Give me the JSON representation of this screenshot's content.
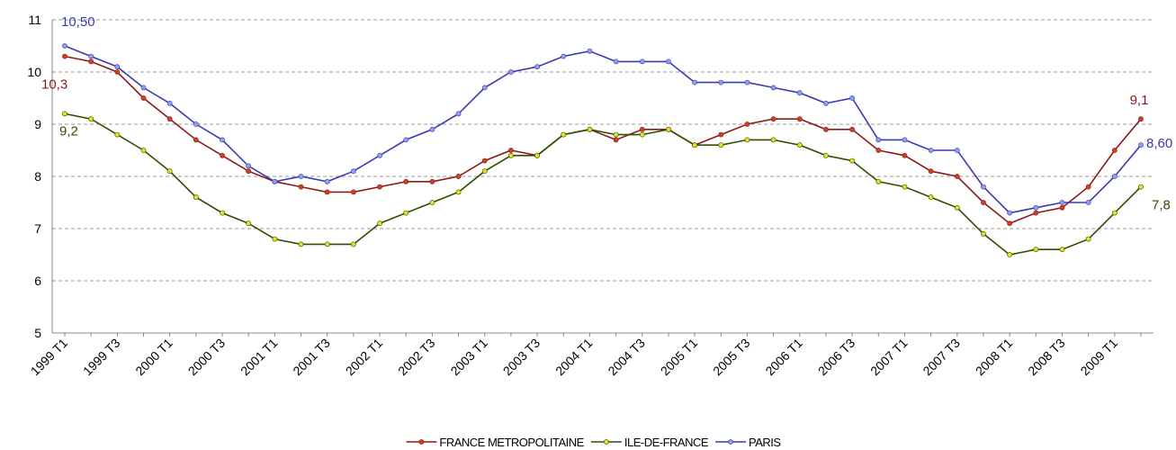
{
  "chart_data": {
    "type": "line",
    "categories": [
      "1999 T1",
      null,
      "1999 T3",
      null,
      "2000 T1",
      null,
      "2000 T3",
      null,
      "2001 T1",
      null,
      "2001 T3",
      null,
      "2002 T1",
      null,
      "2002 T3",
      null,
      "2003 T1",
      null,
      "2003 T3",
      null,
      "2004 T1",
      null,
      "2004 T3",
      null,
      "2005 T1",
      null,
      "2005 T3",
      null,
      "2006 T1",
      null,
      "2006 T3",
      null,
      "2007 T1",
      null,
      "2007 T3",
      null,
      "2008 T1",
      null,
      "2008 T3",
      null,
      "2009 T1",
      null
    ],
    "series": [
      {
        "name": "FRANCE METROPOLITAINE",
        "color": "#8b1a1a",
        "marker_color": "#d04020",
        "values": [
          10.3,
          10.2,
          10.0,
          9.5,
          9.1,
          8.7,
          8.4,
          8.1,
          7.9,
          7.8,
          7.7,
          7.7,
          7.8,
          7.9,
          7.9,
          8.0,
          8.3,
          8.5,
          8.4,
          8.8,
          8.9,
          8.7,
          8.9,
          8.9,
          8.6,
          8.8,
          9.0,
          9.1,
          9.1,
          8.9,
          8.9,
          8.5,
          8.4,
          8.1,
          8.0,
          7.5,
          7.1,
          7.3,
          7.4,
          7.8,
          8.5,
          9.1
        ],
        "value_labels": [
          "10,3",
          null,
          null,
          null,
          null,
          null,
          null,
          null,
          null,
          null,
          null,
          null,
          null,
          null,
          null,
          null,
          null,
          null,
          null,
          null,
          null,
          null,
          null,
          null,
          null,
          null,
          null,
          null,
          null,
          null,
          null,
          null,
          null,
          null,
          null,
          null,
          null,
          null,
          null,
          null,
          null,
          "9,1"
        ]
      },
      {
        "name": "ILE-DE-FRANCE",
        "color": "#2f4f00",
        "marker_color": "#e8e020",
        "values": [
          9.2,
          9.1,
          8.8,
          8.5,
          8.1,
          7.6,
          7.3,
          7.1,
          6.8,
          6.7,
          6.7,
          6.7,
          7.1,
          7.3,
          7.5,
          7.7,
          8.1,
          8.4,
          8.4,
          8.8,
          8.9,
          8.8,
          8.8,
          8.9,
          8.6,
          8.6,
          8.7,
          8.7,
          8.6,
          8.4,
          8.3,
          7.9,
          7.8,
          7.6,
          7.4,
          6.9,
          6.5,
          6.6,
          6.6,
          6.8,
          7.3,
          7.8
        ],
        "value_labels": [
          "9,2",
          null,
          null,
          null,
          null,
          null,
          null,
          null,
          null,
          null,
          null,
          null,
          null,
          null,
          null,
          null,
          null,
          null,
          null,
          null,
          null,
          null,
          null,
          null,
          null,
          null,
          null,
          null,
          null,
          null,
          null,
          null,
          null,
          null,
          null,
          null,
          null,
          null,
          null,
          null,
          null,
          "7,8"
        ]
      },
      {
        "name": "PARIS",
        "color": "#3a3ab0",
        "marker_color": "#8fa0e8",
        "values": [
          10.5,
          10.3,
          10.1,
          9.7,
          9.4,
          9.0,
          8.7,
          8.2,
          7.9,
          8.0,
          7.9,
          8.1,
          8.4,
          8.7,
          8.9,
          9.2,
          9.7,
          10.0,
          10.1,
          10.3,
          10.4,
          10.2,
          10.2,
          10.2,
          9.8,
          9.8,
          9.8,
          9.7,
          9.6,
          9.4,
          9.5,
          8.7,
          8.7,
          8.5,
          8.5,
          7.8,
          7.3,
          7.4,
          7.5,
          7.5,
          8.0,
          8.6
        ],
        "value_labels": [
          "10,50",
          null,
          null,
          null,
          null,
          null,
          null,
          null,
          null,
          null,
          null,
          null,
          null,
          null,
          null,
          null,
          null,
          null,
          null,
          null,
          null,
          null,
          null,
          null,
          null,
          null,
          null,
          null,
          null,
          null,
          null,
          null,
          null,
          null,
          null,
          null,
          null,
          null,
          null,
          null,
          null,
          "8,60"
        ]
      }
    ],
    "ylim": [
      5,
      11
    ],
    "yticks": [
      5,
      6,
      7,
      8,
      9,
      10,
      11
    ],
    "grid": true,
    "legend": "bottom"
  }
}
